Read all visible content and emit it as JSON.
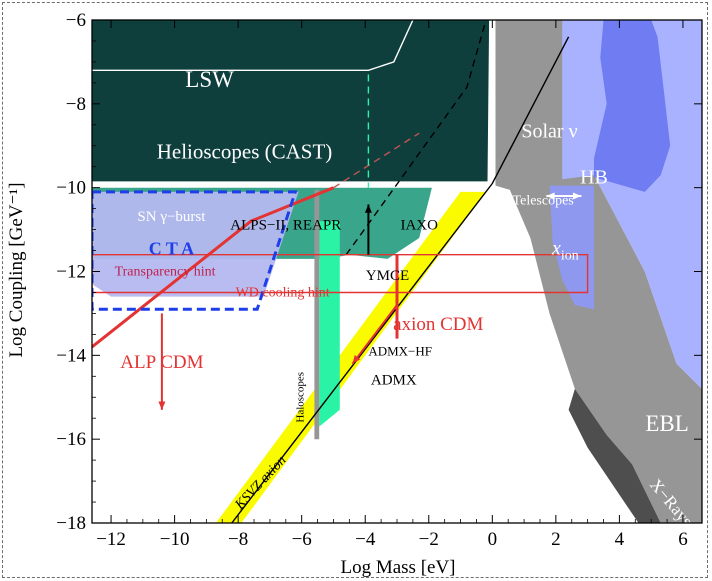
{
  "chart_data": {
    "type": "area",
    "xlabel": "Log Mass [eV]",
    "ylabel": "Log Coupling [GeV⁻¹]",
    "xlim": [
      -12.6,
      6.6
    ],
    "ylim": [
      -18,
      -6
    ],
    "x_ticks": [
      -12,
      -10,
      -8,
      -6,
      -4,
      -2,
      0,
      2,
      4,
      6
    ],
    "y_ticks": [
      -6,
      -8,
      -10,
      -12,
      -14,
      -16,
      -18
    ],
    "x_tick_labels": [
      "−12",
      "−10",
      "−8",
      "−6",
      "−4",
      "−2",
      "0",
      "2",
      "4",
      "6"
    ],
    "y_tick_labels": [
      "−6",
      "−8",
      "−10",
      "−12",
      "−14",
      "−16",
      "−18"
    ],
    "grid": false,
    "colors": {
      "helioscopes": "#0e3f3c",
      "lab_bright": "#2af3a5",
      "lab_mid": "#239b7d",
      "astro_gray": "#969696",
      "astro_dark": "#4e4e4e",
      "hb_blue": "#6f7cf2",
      "ion_blue": "#8e98ee",
      "light_blue": "#a9b2ff",
      "sn_blue": "#b4b8f0",
      "ksvz_yellow": "#fbfb00",
      "hint_red": "#e33333",
      "cta_blue": "#1d3ee8",
      "white": "#ffffff"
    },
    "regions": [
      {
        "name": "helioscopes",
        "polygon": [
          [
            -12.6,
            -6
          ],
          [
            -1.1,
            -6
          ],
          [
            -0.1,
            -6
          ],
          [
            -0.15,
            -9.85
          ],
          [
            -12.6,
            -9.85
          ]
        ]
      },
      {
        "name": "ebl",
        "polygon": [
          [
            0.1,
            -6
          ],
          [
            3.2,
            -6
          ],
          [
            3.2,
            -9.7
          ],
          [
            4.8,
            -12
          ],
          [
            5.8,
            -14.2
          ],
          [
            6.6,
            -14.8
          ],
          [
            6.6,
            -18
          ],
          [
            5.3,
            -18
          ],
          [
            4.4,
            -16.6
          ],
          [
            3.6,
            -15.9
          ],
          [
            2.6,
            -14.8
          ],
          [
            1.8,
            -13
          ],
          [
            1.2,
            -11.2
          ],
          [
            0.55,
            -10.05
          ],
          [
            0.1,
            -9.95
          ]
        ]
      },
      {
        "name": "xrays",
        "polygon": [
          [
            2.6,
            -14.8
          ],
          [
            3.6,
            -15.9
          ],
          [
            4.4,
            -16.6
          ],
          [
            5.3,
            -18
          ],
          [
            4.6,
            -18
          ],
          [
            3.8,
            -17.1
          ],
          [
            3.0,
            -16.2
          ],
          [
            2.4,
            -15.3
          ]
        ]
      },
      {
        "name": "hb_light",
        "polygon": [
          [
            2.2,
            -6
          ],
          [
            6.6,
            -6
          ],
          [
            6.6,
            -14.8
          ],
          [
            5.8,
            -14.2
          ],
          [
            4.8,
            -12
          ],
          [
            3.2,
            -9.7
          ],
          [
            2.2,
            -9.8
          ]
        ]
      },
      {
        "name": "hb_dark",
        "polygon": [
          [
            3.5,
            -6
          ],
          [
            5.0,
            -6
          ],
          [
            5.2,
            -6.4
          ],
          [
            5.4,
            -7.7
          ],
          [
            5.6,
            -9.0
          ],
          [
            5.3,
            -9.7
          ],
          [
            4.8,
            -10.1
          ],
          [
            3.2,
            -9.75
          ],
          [
            3.2,
            -9.3
          ],
          [
            3.6,
            -8.0
          ],
          [
            3.4,
            -6.9
          ]
        ]
      },
      {
        "name": "xion",
        "polygon": [
          [
            1.8,
            -9.95
          ],
          [
            3.2,
            -9.95
          ],
          [
            3.2,
            -12.9
          ],
          [
            2.6,
            -12.8
          ],
          [
            2.2,
            -12.2
          ],
          [
            1.9,
            -11.3
          ]
        ]
      },
      {
        "name": "sn_gamma_burst",
        "polygon": [
          [
            -12.6,
            -10.1
          ],
          [
            -6.1,
            -10.1
          ],
          [
            -7.2,
            -12.6
          ],
          [
            -12.0,
            -12.6
          ],
          [
            -12.6,
            -12.3
          ]
        ]
      },
      {
        "name": "alps_iaxo",
        "polygon": [
          [
            -12.6,
            -10.0
          ],
          [
            -1.9,
            -10.0
          ],
          [
            -2.3,
            -11.2
          ],
          [
            -3.3,
            -11.7
          ],
          [
            -4.5,
            -11.6
          ],
          [
            -5.2,
            -11.7
          ],
          [
            -12.6,
            -11.7
          ]
        ]
      },
      {
        "name": "ksvz_band",
        "polygon": [
          [
            -8.7,
            -18
          ],
          [
            -7.9,
            -18
          ],
          [
            -0.2,
            -10.1
          ],
          [
            -1.0,
            -10.1
          ]
        ]
      },
      {
        "name": "haloscopes",
        "polygon": [
          [
            -5.6,
            -10.05
          ],
          [
            -5.45,
            -10.05
          ],
          [
            -5.45,
            -16.0
          ],
          [
            -5.6,
            -16.0
          ]
        ]
      },
      {
        "name": "admx",
        "polygon": [
          [
            -5.45,
            -10.8
          ],
          [
            -4.8,
            -10.8
          ],
          [
            -4.8,
            -15.3
          ],
          [
            -5.45,
            -15.7
          ]
        ]
      }
    ],
    "lines": [
      {
        "name": "alp-cdm",
        "points": [
          [
            -12.6,
            -13.8
          ],
          [
            -7.6,
            -10.8
          ],
          [
            -5.0,
            -10.0
          ]
        ],
        "color": "#e33333",
        "dashed": false
      },
      {
        "name": "alp-cdm-dashed",
        "points": [
          [
            -5.0,
            -10.0
          ],
          [
            -2.3,
            -8.7
          ]
        ],
        "color": "#c05454",
        "dashed": true
      },
      {
        "name": "ksvz-axion",
        "points": [
          [
            -8.2,
            -18
          ],
          [
            0.0,
            -9.9
          ],
          [
            2.4,
            -6.4
          ]
        ],
        "color": "#000000",
        "dashed": false
      },
      {
        "name": "ksvz-dashed",
        "points": [
          [
            -4.6,
            -11.6
          ],
          [
            -0.8,
            -7.6
          ],
          [
            -0.2,
            -6.0
          ]
        ],
        "color": "#000000",
        "dashed": true
      },
      {
        "name": "lsw-line",
        "points": [
          [
            -12.6,
            -7.2
          ],
          [
            -3.9,
            -7.2
          ],
          [
            -3.1,
            -7.0
          ],
          [
            -2.5,
            -6.0
          ]
        ],
        "color": "#ffffff",
        "dashed": false
      },
      {
        "name": "ymce-line",
        "points": [
          [
            -3.9,
            -7.3
          ],
          [
            -3.9,
            -10.0
          ]
        ],
        "color": "#2af3a5",
        "dashed": true
      },
      {
        "name": "wd-cooling",
        "points": [
          [
            -12.6,
            -11.6
          ],
          [
            3.0,
            -11.6
          ],
          [
            3.0,
            -12.5
          ],
          [
            -12.6,
            -12.5
          ]
        ],
        "color": "#e33333",
        "dashed": false
      },
      {
        "name": "transparency",
        "points": [
          [
            -12.6,
            -11.0
          ],
          [
            -12.6,
            -12.2
          ]
        ],
        "color": "#e33333",
        "dashed": false
      },
      {
        "name": "cta-box",
        "points": [
          [
            -12.6,
            -10.1
          ],
          [
            -6.2,
            -10.1
          ],
          [
            -7.4,
            -12.9
          ],
          [
            -12.6,
            -12.9
          ]
        ],
        "color": "#1d3ee8",
        "dashed": true
      },
      {
        "name": "axion-cdm-bar",
        "points": [
          [
            -3.0,
            -11.6
          ],
          [
            -3.0,
            -13.6
          ]
        ],
        "color": "#e33333",
        "dashed": false
      }
    ],
    "annotations": [
      {
        "text": "LSW",
        "x": -8.9,
        "y": -7.6,
        "color": "#ffffff",
        "size": 23
      },
      {
        "text": "Helioscopes (CAST)",
        "x": -7.8,
        "y": -9.3,
        "color": "#ffffff",
        "size": 21
      },
      {
        "text": "Solar ν",
        "x": 1.8,
        "y": -8.8,
        "color": "#ffffff",
        "size": 20
      },
      {
        "text": "HB",
        "x": 3.2,
        "y": -9.9,
        "color": "#ffffff",
        "size": 20
      },
      {
        "text": "Telescopes",
        "x": 1.6,
        "y": -10.4,
        "color": "#ffffff",
        "size": 14
      },
      {
        "text": "SN γ−burst",
        "x": -10.1,
        "y": -10.8,
        "color": "#ffffff",
        "size": 15
      },
      {
        "text": "ALPS−II, REAPR",
        "x": -6.5,
        "y": -11.0,
        "color": "#000000",
        "size": 15
      },
      {
        "text": "IAXO",
        "x": -2.3,
        "y": -11.0,
        "color": "#000000",
        "size": 15
      },
      {
        "text": "C T A",
        "x": -10.1,
        "y": -11.6,
        "color": "#1d3ee8",
        "size": 18
      },
      {
        "text": "Transparency hint",
        "x": -10.3,
        "y": -12.1,
        "color": "#c02050",
        "size": 14
      },
      {
        "text": "WD cooling hint",
        "x": -6.6,
        "y": -12.6,
        "color": "#e33333",
        "size": 14
      },
      {
        "text": "YMCE",
        "x": -3.3,
        "y": -12.2,
        "color": "#000000",
        "size": 15
      },
      {
        "text": "axion CDM",
        "x": -1.7,
        "y": -13.4,
        "color": "#e33333",
        "size": 19
      },
      {
        "text": "ADMX−HF",
        "x": -2.9,
        "y": -14.0,
        "color": "#000000",
        "size": 13
      },
      {
        "text": "ADMX",
        "x": -3.1,
        "y": -14.7,
        "color": "#000000",
        "size": 15
      },
      {
        "text": "ALP CDM",
        "x": -10.4,
        "y": -14.3,
        "color": "#e33333",
        "size": 19
      },
      {
        "text": "Haloscopes",
        "x": -5.95,
        "y": -15.0,
        "color": "#000000",
        "size": 11,
        "rotate": -90
      },
      {
        "text": "KSVZ axion",
        "x": -7.2,
        "y": -17.1,
        "color": "#000000",
        "size": 14,
        "rotate": -47
      },
      {
        "text": "x",
        "x": 2.3,
        "y": -11.6,
        "color": "#ffffff",
        "size": 20,
        "sub": "ion"
      },
      {
        "text": "EBL",
        "x": 5.5,
        "y": -15.8,
        "color": "#ffffff",
        "size": 23
      },
      {
        "text": "X−Rays",
        "x": 5.5,
        "y": -17.6,
        "color": "#ffffff",
        "size": 17,
        "rotate": 50
      }
    ]
  }
}
